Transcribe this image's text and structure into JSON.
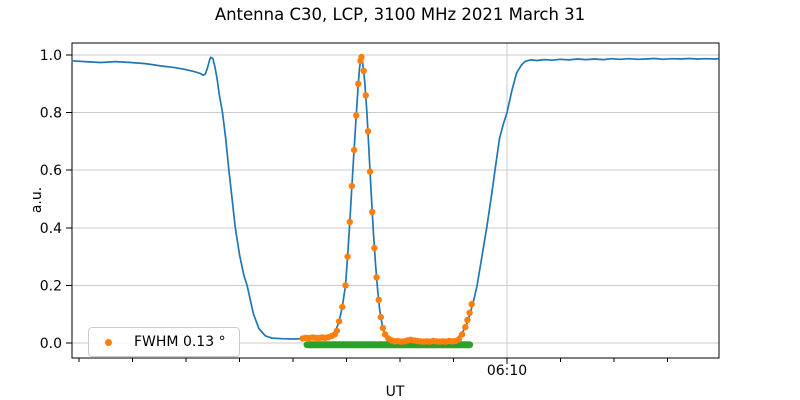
{
  "chart_data": {
    "type": "line",
    "title": "Antenna C30, LCP, 3100 MHz 2021 March 31",
    "xlabel": "UT",
    "ylabel": "a.u.",
    "legend": {
      "label": "FWHM 0.13 °",
      "marker_color": "#ff7f0e",
      "position": "lower left"
    },
    "colors": {
      "scan_line": "#1f77b4",
      "fit_markers": "#ff7f0e",
      "baseline_markers": "#2ca02c",
      "grid": "#cbcbcb",
      "axis": "#000000"
    },
    "x_axis": {
      "unit": "minutes relative to 06:10 UT",
      "range": [
        -40.7,
        19.8
      ],
      "major_tick": {
        "t": 0,
        "label": "06:10",
        "gridline": true
      },
      "minor_ticks_t": [
        -40,
        -35,
        -30,
        -25,
        -20,
        -15,
        -10,
        -5,
        5,
        10,
        15
      ]
    },
    "y_axis": {
      "ticks": [
        0.0,
        0.2,
        0.4,
        0.6,
        0.8,
        1.0
      ],
      "range": [
        -0.052,
        1.042
      ],
      "grid": true
    },
    "series": [
      {
        "name": "drift-scan",
        "type": "line",
        "color": "#1f77b4",
        "points": [
          [
            -40.7,
            0.98
          ],
          [
            -39.5,
            0.977
          ],
          [
            -38.0,
            0.974
          ],
          [
            -36.6,
            0.977
          ],
          [
            -35.2,
            0.974
          ],
          [
            -33.8,
            0.97
          ],
          [
            -32.4,
            0.962
          ],
          [
            -31.0,
            0.956
          ],
          [
            -30.1,
            0.95
          ],
          [
            -29.2,
            0.942
          ],
          [
            -28.7,
            0.936
          ],
          [
            -28.4,
            0.93
          ],
          [
            -28.2,
            0.934
          ],
          [
            -28.0,
            0.956
          ],
          [
            -27.8,
            0.984
          ],
          [
            -27.7,
            0.992
          ],
          [
            -27.5,
            0.988
          ],
          [
            -27.3,
            0.958
          ],
          [
            -27.1,
            0.915
          ],
          [
            -26.9,
            0.862
          ],
          [
            -26.6,
            0.8
          ],
          [
            -26.3,
            0.71
          ],
          [
            -26.0,
            0.6
          ],
          [
            -25.7,
            0.5
          ],
          [
            -25.4,
            0.4
          ],
          [
            -25.0,
            0.305
          ],
          [
            -24.6,
            0.235
          ],
          [
            -24.3,
            0.2
          ],
          [
            -23.7,
            0.1
          ],
          [
            -23.2,
            0.05
          ],
          [
            -22.6,
            0.025
          ],
          [
            -22.0,
            0.017
          ],
          [
            -21.0,
            0.015
          ],
          [
            -20.0,
            0.014
          ],
          [
            -19.0,
            0.015
          ],
          [
            -18.0,
            0.015
          ],
          [
            -17.2,
            0.017
          ],
          [
            -16.6,
            0.022
          ],
          [
            -16.3,
            0.03
          ],
          [
            -16.0,
            0.045
          ],
          [
            -15.7,
            0.075
          ],
          [
            -15.4,
            0.125
          ],
          [
            -15.1,
            0.2
          ],
          [
            -14.9,
            0.3
          ],
          [
            -14.7,
            0.42
          ],
          [
            -14.5,
            0.545
          ],
          [
            -14.3,
            0.67
          ],
          [
            -14.1,
            0.79
          ],
          [
            -13.9,
            0.9
          ],
          [
            -13.8,
            0.95
          ],
          [
            -13.7,
            0.98
          ],
          [
            -13.6,
            0.993
          ],
          [
            -13.5,
            0.975
          ],
          [
            -13.3,
            0.905
          ],
          [
            -13.1,
            0.8
          ],
          [
            -12.9,
            0.665
          ],
          [
            -12.7,
            0.52
          ],
          [
            -12.5,
            0.39
          ],
          [
            -12.3,
            0.275
          ],
          [
            -12.1,
            0.185
          ],
          [
            -11.9,
            0.115
          ],
          [
            -11.7,
            0.068
          ],
          [
            -11.5,
            0.04
          ],
          [
            -11.2,
            0.02
          ],
          [
            -10.9,
            0.012
          ],
          [
            -10.4,
            0.008
          ],
          [
            -9.8,
            0.006
          ],
          [
            -9.2,
            0.005
          ],
          [
            -8.6,
            0.006
          ],
          [
            -8.0,
            0.005
          ],
          [
            -7.4,
            0.006
          ],
          [
            -6.8,
            0.005
          ],
          [
            -6.2,
            0.006
          ],
          [
            -5.6,
            0.006
          ],
          [
            -5.1,
            0.008
          ],
          [
            -4.6,
            0.018
          ],
          [
            -4.2,
            0.035
          ],
          [
            -3.8,
            0.062
          ],
          [
            -3.46,
            0.1
          ],
          [
            -3.1,
            0.15
          ],
          [
            -2.8,
            0.2
          ],
          [
            -2.3,
            0.31
          ],
          [
            -1.9,
            0.4
          ],
          [
            -1.5,
            0.5
          ],
          [
            -1.12,
            0.6
          ],
          [
            -0.7,
            0.71
          ],
          [
            -0.35,
            0.76
          ],
          [
            0.0,
            0.8
          ],
          [
            0.45,
            0.875
          ],
          [
            0.9,
            0.938
          ],
          [
            1.35,
            0.965
          ],
          [
            1.7,
            0.978
          ],
          [
            2.2,
            0.983
          ],
          [
            2.8,
            0.981
          ],
          [
            3.5,
            0.984
          ],
          [
            4.2,
            0.982
          ],
          [
            5.0,
            0.985
          ],
          [
            5.8,
            0.983
          ],
          [
            6.6,
            0.986
          ],
          [
            7.4,
            0.984
          ],
          [
            8.2,
            0.986
          ],
          [
            9.0,
            0.984
          ],
          [
            9.8,
            0.987
          ],
          [
            10.6,
            0.985
          ],
          [
            11.4,
            0.987
          ],
          [
            12.2,
            0.985
          ],
          [
            13.0,
            0.986
          ],
          [
            13.8,
            0.988
          ],
          [
            14.6,
            0.985
          ],
          [
            15.4,
            0.987
          ],
          [
            16.2,
            0.986
          ],
          [
            17.0,
            0.988
          ],
          [
            17.8,
            0.986
          ],
          [
            18.6,
            0.987
          ],
          [
            19.4,
            0.986
          ],
          [
            19.8,
            0.987
          ]
        ]
      },
      {
        "name": "baseline",
        "type": "thick-line",
        "color": "#2ca02c",
        "points": [
          [
            -18.7,
            -0.006
          ],
          [
            -3.5,
            -0.006
          ]
        ]
      },
      {
        "name": "gaussian-fit-points",
        "type": "scatter",
        "color": "#ff7f0e",
        "points": [
          [
            -19.1,
            0.016
          ],
          [
            -18.8,
            0.018
          ],
          [
            -18.5,
            0.017
          ],
          [
            -18.2,
            0.019
          ],
          [
            -17.9,
            0.018
          ],
          [
            -17.6,
            0.017
          ],
          [
            -17.3,
            0.019
          ],
          [
            -17.0,
            0.018
          ],
          [
            -16.7,
            0.02
          ],
          [
            -16.4,
            0.024
          ],
          [
            -16.1,
            0.03
          ],
          [
            -15.9,
            0.042
          ],
          [
            -15.7,
            0.075
          ],
          [
            -15.4,
            0.125
          ],
          [
            -15.1,
            0.2
          ],
          [
            -14.9,
            0.3
          ],
          [
            -14.7,
            0.42
          ],
          [
            -14.5,
            0.545
          ],
          [
            -14.3,
            0.67
          ],
          [
            -14.1,
            0.79
          ],
          [
            -13.9,
            0.9
          ],
          [
            -13.7,
            0.98
          ],
          [
            -13.6,
            0.993
          ],
          [
            -13.4,
            0.945
          ],
          [
            -13.2,
            0.86
          ],
          [
            -13.0,
            0.735
          ],
          [
            -12.8,
            0.595
          ],
          [
            -12.6,
            0.455
          ],
          [
            -12.4,
            0.33
          ],
          [
            -12.2,
            0.228
          ],
          [
            -12.0,
            0.15
          ],
          [
            -11.8,
            0.09
          ],
          [
            -11.6,
            0.052
          ],
          [
            -11.4,
            0.03
          ],
          [
            -11.1,
            0.016
          ],
          [
            -10.8,
            0.009
          ],
          [
            -10.5,
            0.006
          ],
          [
            -10.2,
            0.007
          ],
          [
            -9.9,
            0.005
          ],
          [
            -9.6,
            0.006
          ],
          [
            -9.3,
            0.009
          ],
          [
            -9.0,
            0.011
          ],
          [
            -8.7,
            0.009
          ],
          [
            -8.4,
            0.007
          ],
          [
            -8.1,
            0.006
          ],
          [
            -7.8,
            0.005
          ],
          [
            -7.5,
            0.006
          ],
          [
            -7.2,
            0.005
          ],
          [
            -6.9,
            0.007
          ],
          [
            -6.6,
            0.006
          ],
          [
            -6.3,
            0.005
          ],
          [
            -6.0,
            0.006
          ],
          [
            -5.7,
            0.005
          ],
          [
            -5.4,
            0.007
          ],
          [
            -5.1,
            0.006
          ],
          [
            -4.8,
            0.007
          ],
          [
            -4.5,
            0.012
          ],
          [
            -4.2,
            0.03
          ],
          [
            -3.9,
            0.055
          ],
          [
            -3.7,
            0.08
          ],
          [
            -3.5,
            0.105
          ],
          [
            -3.3,
            0.135
          ]
        ]
      }
    ]
  }
}
